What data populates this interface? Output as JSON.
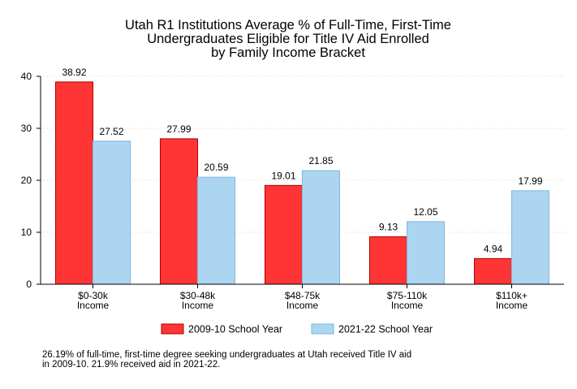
{
  "chart_data": {
    "type": "bar",
    "title": [
      "Utah R1 Institutions Average % of Full-Time, First-Time",
      "Undergraduates Eligible for Title IV Aid Enrolled",
      "by Family Income Bracket"
    ],
    "categories": [
      [
        "$0-30k",
        "Income"
      ],
      [
        "$30-48k",
        "Income"
      ],
      [
        "$48-75k",
        "Income"
      ],
      [
        "$75-110k",
        "Income"
      ],
      [
        "$110k+",
        "Income"
      ]
    ],
    "series": [
      {
        "name": "2009-10 School Year",
        "color": "#ff3434",
        "edge_color": "#b00000",
        "values": [
          38.92,
          27.99,
          19.01,
          9.13,
          4.94
        ],
        "labels": [
          "38.92",
          "27.99",
          "19.01",
          "9.13",
          "4.94"
        ]
      },
      {
        "name": "2021-22 School Year",
        "color": "#acd5f2",
        "edge_color": "#7fb6dc",
        "values": [
          27.52,
          20.59,
          21.85,
          12.05,
          17.99
        ],
        "labels": [
          "27.52",
          "20.59",
          "21.85",
          "12.05",
          "17.99"
        ]
      }
    ],
    "xlabel": "",
    "ylabel": "",
    "ylim": [
      0,
      40
    ],
    "yticks": [
      0,
      10,
      20,
      30,
      40
    ],
    "grid": true,
    "legend_position": "bottom",
    "note": [
      "26.19% of full-time, first-time degree seeking undergraduates at Utah received Title IV aid",
      "in 2009-10. 21.9% received aid in 2021-22."
    ]
  }
}
